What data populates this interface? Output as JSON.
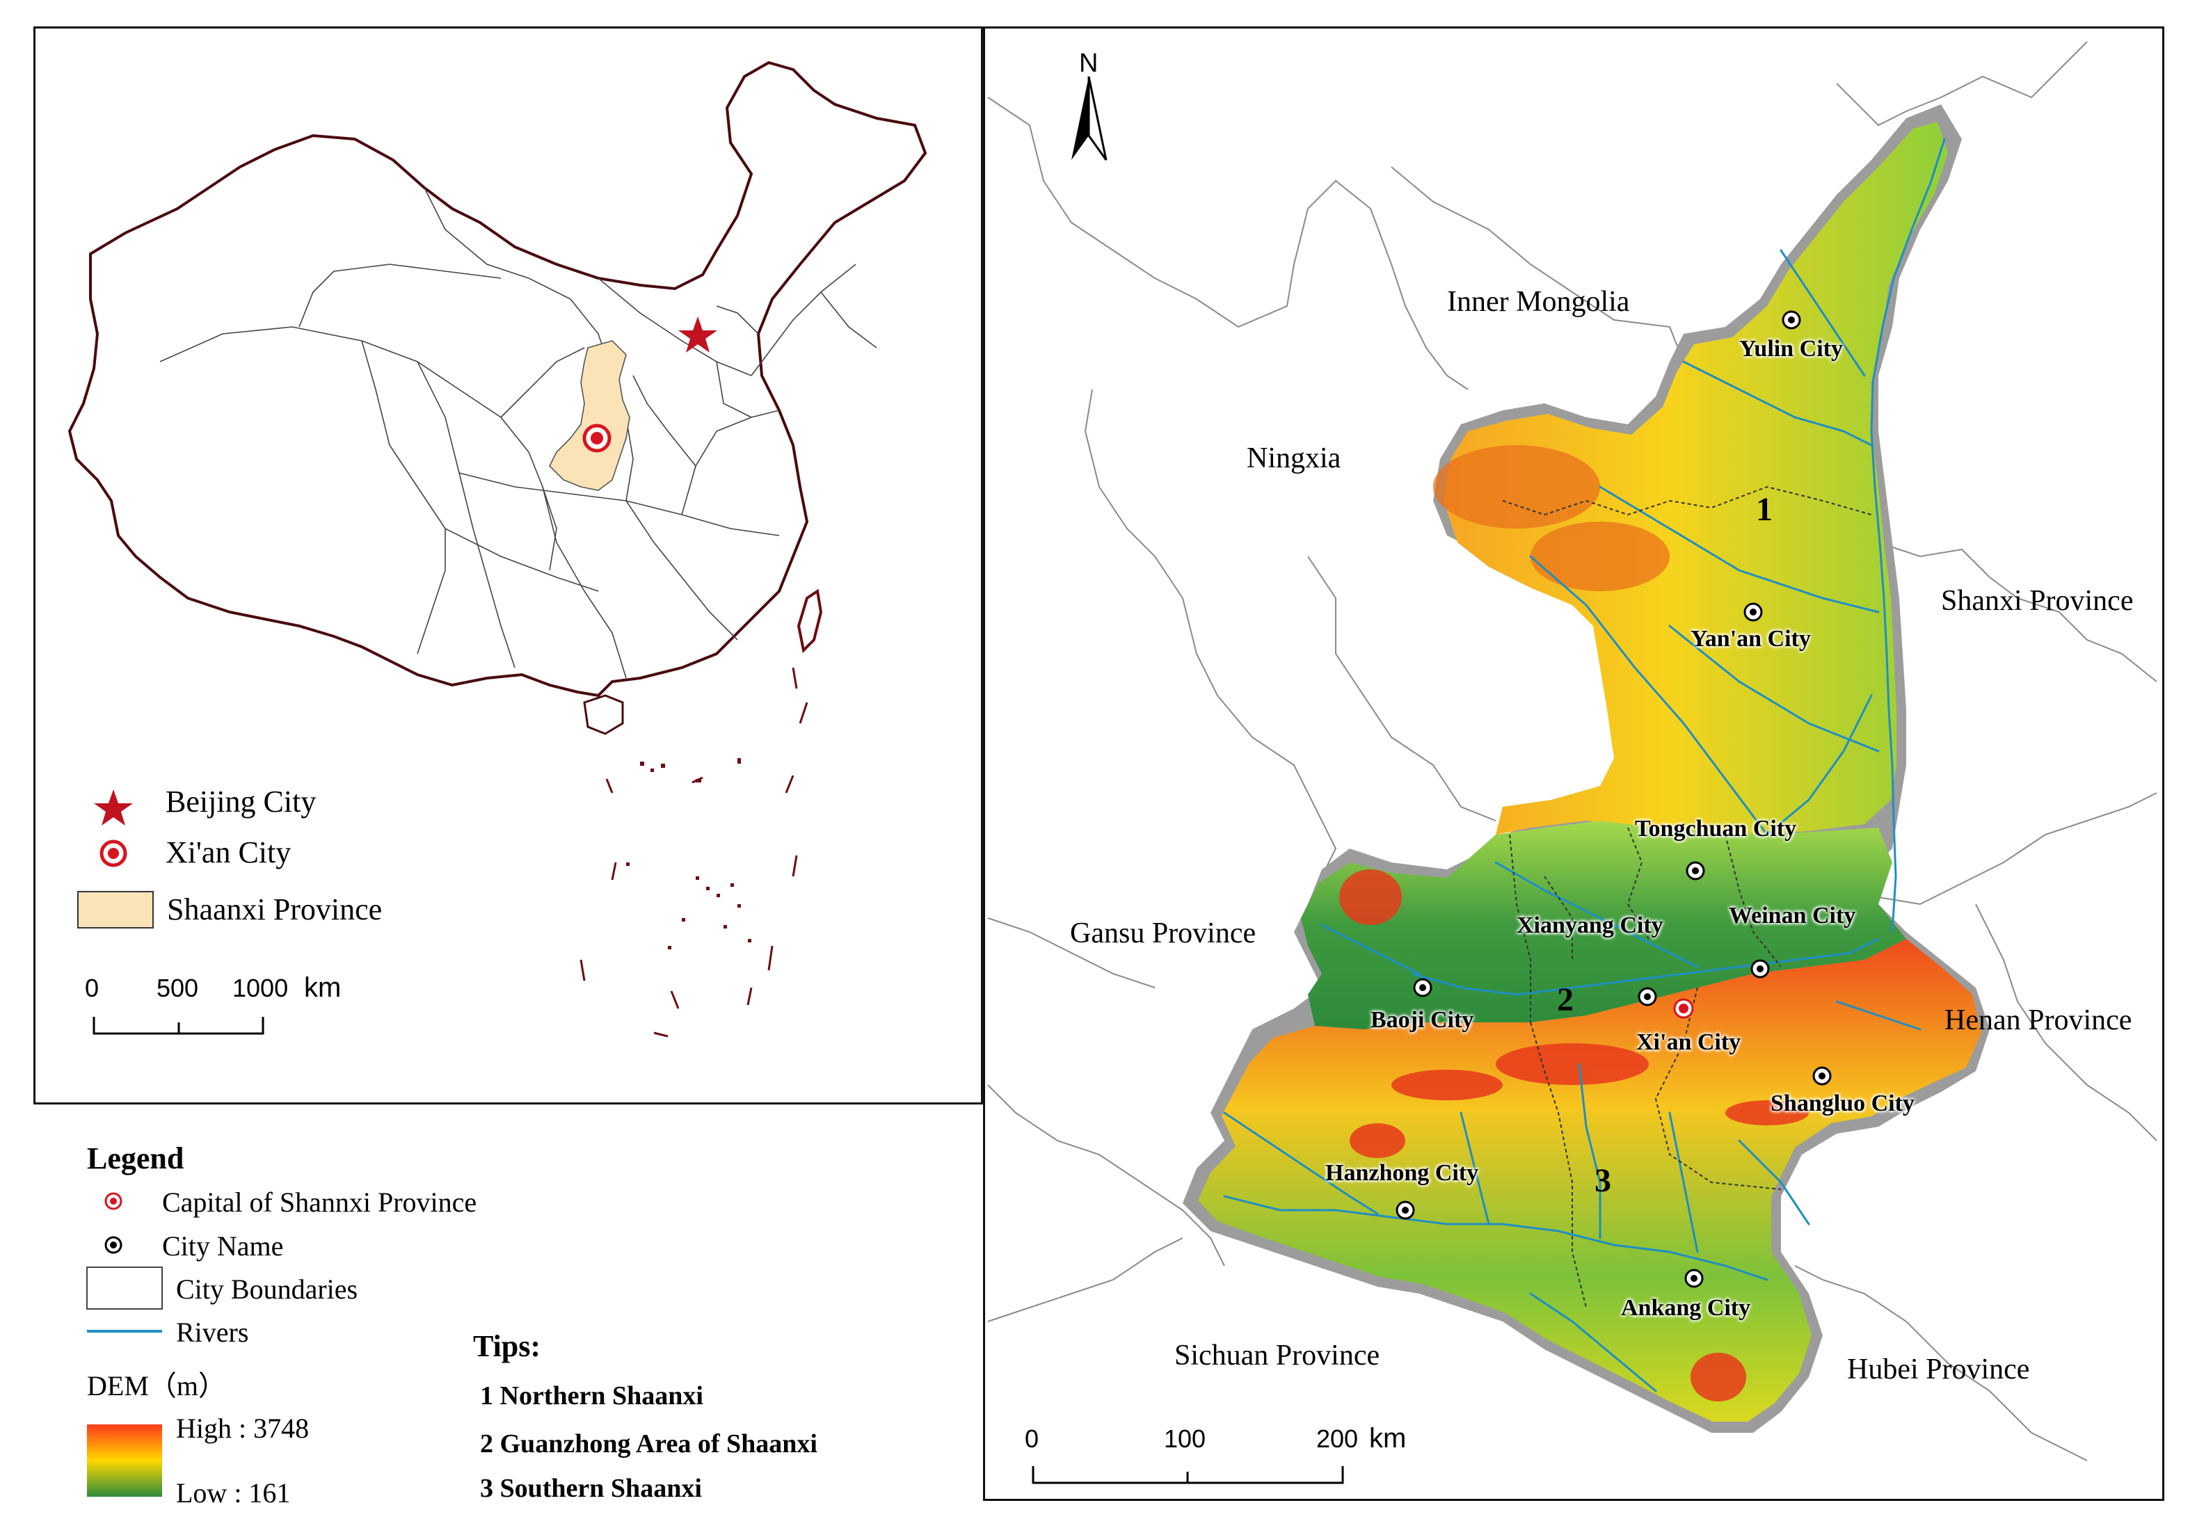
{
  "overview_map": {
    "legend": {
      "beijing": "Beijing City",
      "xian": "Xi'an City",
      "shaanxi": "Shaanxi Province"
    },
    "scalebar": {
      "ticks": [
        "0",
        "500",
        "1000"
      ],
      "unit": "km"
    },
    "colors": {
      "province_fill": "#fbe3b8",
      "capital_red": "#d9141e",
      "islands": "#6b0d12"
    }
  },
  "main_map": {
    "north_arrow": "N",
    "neighbors": {
      "inner_mongolia": "Inner Mongolia",
      "ningxia": "Ningxia",
      "shanxi": "Shanxi Province",
      "gansu": "Gansu Province",
      "henan": "Henan Province",
      "sichuan": "Sichuan Province",
      "hubei": "Hubei Province"
    },
    "cities": {
      "yulin": "Yulin City",
      "yanan": "Yan'an City",
      "tongchuan": "Tongchuan City",
      "xianyang": "Xianyang City",
      "weinan": "Weinan City",
      "baoji": "Baoji City",
      "xian": "Xi'an City",
      "shangluo": "Shangluo City",
      "hanzhong": "Hanzhong City",
      "ankang": "Ankang City"
    },
    "regions": {
      "r1": "1",
      "r2": "2",
      "r3": "3"
    },
    "scalebar": {
      "ticks": [
        "0",
        "100",
        "200"
      ],
      "unit": "km"
    },
    "colors": {
      "river": "#1f8fc2",
      "halo": "#9c9c9c"
    }
  },
  "legend": {
    "title": "Legend",
    "capital": "Capital of Shannxi Province",
    "city": "City Name",
    "boundaries": "City Boundaries",
    "rivers": "Rivers",
    "dem_title": "DEM（m）",
    "high": "High : 3748",
    "low": "Low : 161",
    "dem_colors": [
      "#ff3a1a",
      "#ffd700",
      "#2e8b3a"
    ]
  },
  "tips": {
    "title": "Tips:",
    "items": [
      "1 Northern Shaanxi",
      "2 Guanzhong Area of Shaanxi",
      "3 Southern Shaanxi"
    ]
  }
}
